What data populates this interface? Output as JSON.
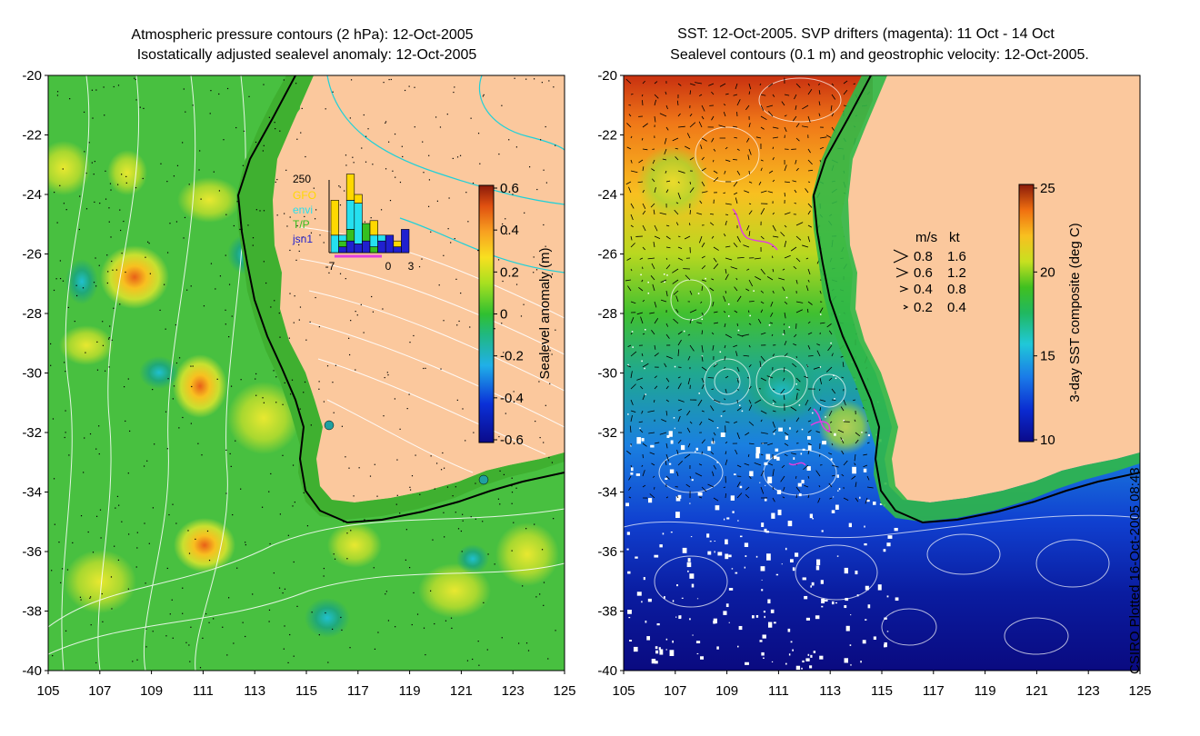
{
  "left_panel": {
    "title_line1": "Atmospheric pressure contours (2 hPa): 12-Oct-2005",
    "title_line2": "Isostatically adjusted sealevel anomaly: 12-Oct-2005",
    "colorbar": {
      "label": "Sealevel anomaly (m)",
      "ticks": [
        "0.6",
        "0.4",
        "0.2",
        "0",
        "-0.2",
        "-0.4",
        "-0.6"
      ]
    },
    "inset_histogram": {
      "ymax_label": "250",
      "legend": [
        {
          "name": "GFO",
          "color": "#ffd800"
        },
        {
          "name": "envi",
          "color": "#25e0ef"
        },
        {
          "name": "T/P",
          "color": "#35c020"
        },
        {
          "name": "jsn1",
          "color": "#2020d0"
        }
      ],
      "x_ticks": [
        "-7",
        "0",
        "3"
      ],
      "stacks": [
        {
          "day": -7,
          "jsn1": 0,
          "tp": 0,
          "envi": 60,
          "gfo": 120
        },
        {
          "day": -6,
          "jsn1": 20,
          "tp": 20,
          "envi": 20,
          "gfo": 0
        },
        {
          "day": -5,
          "jsn1": 40,
          "tp": 40,
          "envi": 100,
          "gfo": 90
        },
        {
          "day": -4,
          "jsn1": 30,
          "tp": 0,
          "envi": 140,
          "gfo": 30
        },
        {
          "day": -3,
          "jsn1": 40,
          "tp": 60,
          "envi": 0,
          "gfo": 0
        },
        {
          "day": -2,
          "jsn1": 0,
          "tp": 20,
          "envi": 40,
          "gfo": 50
        },
        {
          "day": -1,
          "jsn1": 40,
          "tp": 0,
          "envi": 20,
          "gfo": 0
        },
        {
          "day": 0,
          "jsn1": 60,
          "tp": 0,
          "envi": 0,
          "gfo": 0
        },
        {
          "day": 1,
          "jsn1": 20,
          "tp": 0,
          "envi": 0,
          "gfo": 20
        },
        {
          "day": 2,
          "jsn1": 80,
          "tp": 0,
          "envi": 0,
          "gfo": 0
        }
      ]
    }
  },
  "right_panel": {
    "title_line1": "SST: 12-Oct-2005. SVP drifters (magenta): 11 Oct - 14 Oct",
    "title_line2": "Sealevel contours (0.1 m) and geostrophic velocity: 12-Oct-2005.",
    "colorbar": {
      "label": "3-day SST composite (deg C)",
      "ticks": [
        "25",
        "20",
        "15",
        "10"
      ]
    },
    "velocity_legend": {
      "header_ms": "m/s",
      "header_kt": "kt",
      "rows": [
        {
          "ms": "0.8",
          "kt": "1.6"
        },
        {
          "ms": "0.6",
          "kt": "1.2"
        },
        {
          "ms": "0.4",
          "kt": "0.8"
        },
        {
          "ms": "0.2",
          "kt": "0.4"
        }
      ]
    }
  },
  "axes": {
    "lat_ticks": [
      "-20",
      "-22",
      "-24",
      "-26",
      "-28",
      "-30",
      "-32",
      "-34",
      "-36",
      "-38",
      "-40"
    ],
    "lon_ticks": [
      "105",
      "107",
      "109",
      "111",
      "113",
      "115",
      "117",
      "119",
      "121",
      "123",
      "125"
    ],
    "lat_range": [
      -40,
      -20
    ],
    "lon_range": [
      105,
      125
    ]
  },
  "credit": "CSIRO Plotted 16-Oct-2005 08:43",
  "colors": {
    "land": "#fbc89d",
    "sea_base_left": "#48c040",
    "coastline": "#000000"
  }
}
